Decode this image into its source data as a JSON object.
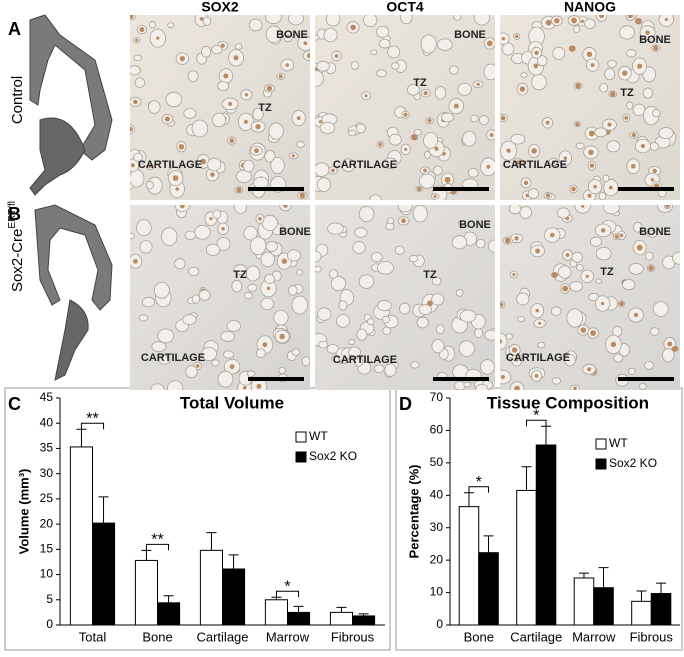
{
  "panel_labels": [
    "A",
    "B",
    "C",
    "D"
  ],
  "columns": [
    "SOX2",
    "OCT4",
    "NANOG"
  ],
  "rows": [
    {
      "label": "Control"
    },
    {
      "label": "Sox2-Cre",
      "superscript": "ERT/fl"
    }
  ],
  "micrograph_labels": [
    [
      [
        "BONE",
        "TZ",
        "CARTILAGE"
      ],
      [
        "BONE",
        "TZ",
        "CARTILAGE"
      ],
      [
        "BONE",
        "TZ",
        "CARTILAGE"
      ]
    ],
    [
      [
        "BONE",
        "TZ",
        "CARTILAGE"
      ],
      [
        "BONE",
        "TZ",
        "CARTILAGE"
      ],
      [
        "BONE",
        "TZ",
        "CARTILAGE"
      ]
    ]
  ],
  "chart_data": [
    {
      "type": "bar",
      "title": "Total Volume",
      "y_label": "Volume (mm³)",
      "categories": [
        "Total",
        "Bone",
        "Cartilage",
        "Marrow",
        "Fibrous"
      ],
      "series": [
        {
          "name": "WT",
          "color": "#ffffff",
          "values": [
            35.3,
            12.8,
            14.8,
            5.0,
            2.5
          ],
          "errors": [
            3.5,
            2.0,
            3.5,
            0.5,
            1.0
          ]
        },
        {
          "name": "Sox2 KO",
          "color": "#000000",
          "values": [
            20.2,
            4.4,
            11.1,
            2.5,
            1.8
          ],
          "errors": [
            5.2,
            1.4,
            2.8,
            1.2,
            0.4
          ]
        }
      ],
      "significance": [
        "**",
        "**",
        null,
        "*",
        null
      ],
      "ylim": [
        0,
        45
      ],
      "yticks": [
        0,
        5,
        10,
        15,
        20,
        25,
        30,
        35,
        40,
        45
      ],
      "legend": "upper-right"
    },
    {
      "type": "bar",
      "title": "Tissue Composition",
      "y_label": "Percentage (%)",
      "categories": [
        "Bone",
        "Cartilage",
        "Marrow",
        "Fibrous"
      ],
      "series": [
        {
          "name": "WT",
          "color": "#ffffff",
          "values": [
            36.5,
            41.5,
            14.5,
            7.3
          ],
          "errors": [
            4.3,
            7.3,
            1.5,
            3.2
          ]
        },
        {
          "name": "Sox2 KO",
          "color": "#000000",
          "values": [
            22.3,
            55.5,
            11.5,
            9.7
          ],
          "errors": [
            5.2,
            5.8,
            6.2,
            3.2
          ]
        }
      ],
      "significance": [
        "*",
        "*",
        null,
        null
      ],
      "ylim": [
        0,
        70
      ],
      "yticks": [
        0,
        10,
        20,
        30,
        40,
        50,
        60,
        70
      ],
      "legend": "upper-right"
    }
  ]
}
